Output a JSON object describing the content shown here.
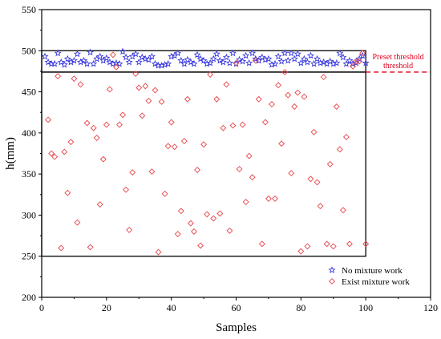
{
  "chart_data": {
    "type": "scatter",
    "xlabel": "Samples",
    "ylabel": "h(mm)",
    "xlim": [
      0,
      120
    ],
    "ylim": [
      200,
      550
    ],
    "xticks": [
      0,
      20,
      40,
      60,
      80,
      100,
      120
    ],
    "yticks": [
      200,
      250,
      300,
      350,
      400,
      450,
      500,
      550
    ],
    "legend_position": "bottom-right",
    "threshold": {
      "y": 474,
      "label_line1": "Preset threshold",
      "label_line2": "threshold",
      "color": "#e0001b"
    },
    "boxes": [
      {
        "x": [
          0,
          100
        ],
        "y": [
          474,
          500
        ]
      },
      {
        "x": [
          0,
          100
        ],
        "y": [
          250,
          474
        ]
      }
    ],
    "series": [
      {
        "name": "No mixture work",
        "marker": "star",
        "color": "#3a3ae0",
        "x": [
          1,
          2,
          3,
          4,
          5,
          6,
          7,
          8,
          9,
          10,
          11,
          12,
          13,
          14,
          15,
          16,
          17,
          18,
          19,
          20,
          21,
          22,
          23,
          24,
          25,
          26,
          27,
          28,
          29,
          30,
          31,
          32,
          33,
          34,
          35,
          36,
          37,
          38,
          39,
          40,
          41,
          42,
          43,
          44,
          45,
          46,
          47,
          48,
          49,
          50,
          51,
          52,
          53,
          54,
          55,
          56,
          57,
          58,
          59,
          60,
          61,
          62,
          63,
          64,
          65,
          66,
          67,
          68,
          69,
          70,
          71,
          72,
          73,
          74,
          75,
          76,
          77,
          78,
          79,
          80,
          81,
          82,
          83,
          84,
          85,
          86,
          87,
          88,
          89,
          90,
          91,
          92,
          93,
          94,
          95,
          96,
          97,
          98,
          99,
          100
        ],
        "y": [
          493,
          486,
          484,
          484,
          497,
          486,
          483,
          490,
          486,
          488,
          496,
          486,
          488,
          484,
          498,
          484,
          490,
          493,
          488,
          491,
          486,
          484,
          485,
          484,
          499,
          492,
          486,
          493,
          496,
          486,
          492,
          490,
          489,
          493,
          484,
          482,
          482,
          483,
          484,
          493,
          494,
          497,
          488,
          484,
          489,
          486,
          484,
          495,
          490,
          488,
          484,
          485,
          490,
          496,
          488,
          486,
          492,
          485,
          497,
          484,
          489,
          487,
          494,
          485,
          497,
          490,
          488,
          492,
          489,
          490,
          483,
          484,
          493,
          487,
          497,
          488,
          497,
          490,
          496,
          485,
          490,
          486,
          494,
          484,
          490,
          485,
          486,
          484,
          487,
          484,
          485,
          497,
          492,
          484,
          488,
          484,
          485,
          490,
          494,
          485
        ]
      },
      {
        "name": "Exist mixture work",
        "marker": "diamond",
        "color": "#e8434a",
        "x": [
          2,
          3,
          4,
          5,
          6,
          7,
          8,
          9,
          10,
          11,
          12,
          14,
          15,
          16,
          17,
          18,
          19,
          20,
          21,
          22,
          23,
          24,
          25,
          26,
          27,
          28,
          29,
          30,
          31,
          32,
          33,
          34,
          35,
          36,
          37,
          38,
          39,
          40,
          41,
          42,
          43,
          44,
          45,
          46,
          47,
          48,
          49,
          50,
          51,
          52,
          53,
          54,
          55,
          56,
          57,
          58,
          59,
          60,
          61,
          62,
          63,
          64,
          65,
          66,
          67,
          68,
          69,
          70,
          71,
          72,
          73,
          74,
          75,
          76,
          77,
          78,
          79,
          80,
          81,
          82,
          83,
          84,
          85,
          86,
          87,
          88,
          89,
          90,
          91,
          92,
          93,
          94,
          95,
          96,
          97,
          98,
          99,
          100
        ],
        "y": [
          416,
          375,
          371,
          469,
          260,
          377,
          327,
          389,
          466,
          291,
          459,
          412,
          261,
          406,
          394,
          313,
          368,
          410,
          453,
          495,
          480,
          410,
          422,
          331,
          282,
          352,
          472,
          455,
          421,
          457,
          439,
          353,
          452,
          255,
          438,
          326,
          384,
          413,
          383,
          277,
          305,
          390,
          441,
          290,
          280,
          355,
          263,
          386,
          301,
          471,
          296,
          441,
          302,
          406,
          459,
          281,
          409,
          485,
          356,
          410,
          316,
          372,
          346,
          488,
          441,
          265,
          413,
          320,
          435,
          320,
          458,
          387,
          474,
          446,
          351,
          432,
          449,
          256,
          444,
          262,
          344,
          401,
          340,
          311,
          468,
          265,
          362,
          262,
          432,
          380,
          306,
          395,
          265,
          481,
          487,
          487,
          497,
          265
        ]
      }
    ]
  }
}
